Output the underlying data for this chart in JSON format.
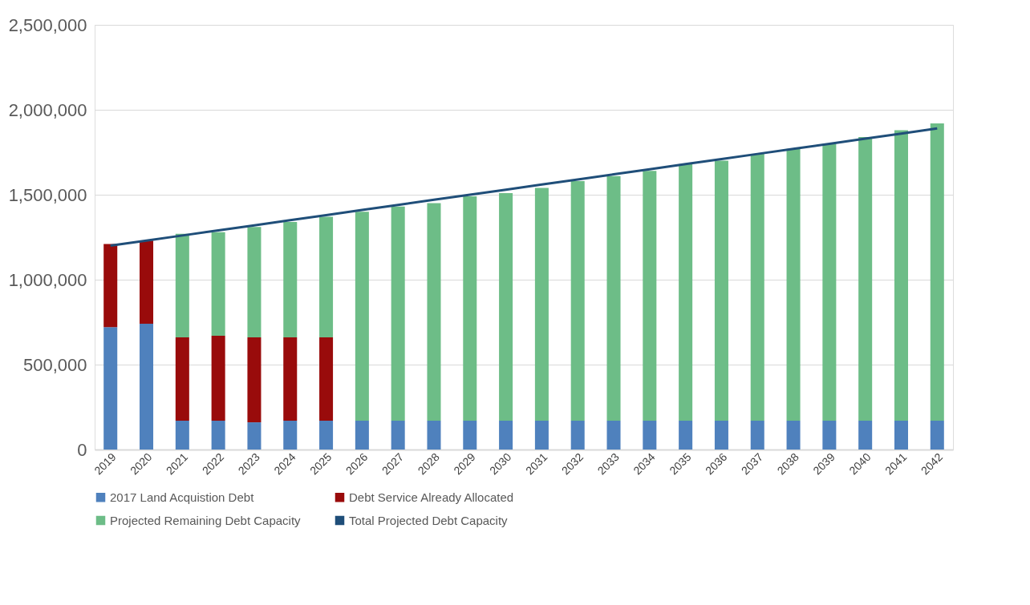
{
  "chart_data": {
    "type": "bar",
    "stacked": true,
    "categories": [
      "2019",
      "2020",
      "2021",
      "2022",
      "2023",
      "2024",
      "2025",
      "2026",
      "2027",
      "2028",
      "2029",
      "2030",
      "2031",
      "2032",
      "2033",
      "2034",
      "2035",
      "2036",
      "2037",
      "2038",
      "2039",
      "2040",
      "2041",
      "2042"
    ],
    "series": [
      {
        "name": "2017 Land Acquistion Debt",
        "color": "#4f81bd",
        "values": [
          720000,
          740000,
          170000,
          170000,
          160000,
          170000,
          170000,
          170000,
          170000,
          170000,
          170000,
          170000,
          170000,
          170000,
          170000,
          170000,
          170000,
          170000,
          170000,
          170000,
          170000,
          170000,
          170000,
          170000
        ]
      },
      {
        "name": "Debt Service Already Allocated",
        "color": "#990b0b",
        "values": [
          490000,
          490000,
          490000,
          500000,
          500000,
          490000,
          490000,
          0,
          0,
          0,
          0,
          0,
          0,
          0,
          0,
          0,
          0,
          0,
          0,
          0,
          0,
          0,
          0,
          0
        ]
      },
      {
        "name": "Projected Remaining Debt Capacity",
        "color": "#6dbd87",
        "values": [
          0,
          0,
          610000,
          610000,
          650000,
          680000,
          710000,
          1230000,
          1260000,
          1280000,
          1320000,
          1340000,
          1370000,
          1410000,
          1440000,
          1470000,
          1510000,
          1530000,
          1570000,
          1600000,
          1630000,
          1670000,
          1710000,
          1750000
        ]
      },
      {
        "name": "Total Projected Debt Capacity",
        "type": "line",
        "color": "#1f4e79",
        "values": [
          1200000,
          1230000,
          1260000,
          1290000,
          1320000,
          1350000,
          1380000,
          1410000,
          1440000,
          1470000,
          1500000,
          1530000,
          1560000,
          1590000,
          1620000,
          1650000,
          1680000,
          1710000,
          1740000,
          1770000,
          1800000,
          1830000,
          1860000,
          1890000
        ]
      }
    ],
    "ylim": [
      0,
      2500000
    ],
    "yticks": [
      0,
      {
        "value": 500000,
        "label": "500,000"
      },
      {
        "value": 1000000,
        "label": "1,000,000"
      },
      {
        "value": 1500000,
        "label": "1,500,000"
      },
      {
        "value": 2000000,
        "label": "2,000,000"
      },
      {
        "value": 2500000,
        "label": "2,500,000"
      }
    ],
    "grid": "y",
    "legend": "bottom",
    "marker": "none"
  }
}
